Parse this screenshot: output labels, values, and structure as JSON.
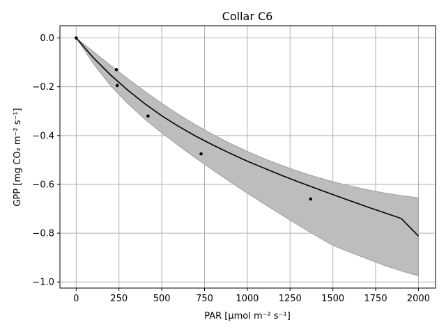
{
  "chart_data": {
    "type": "line",
    "title": "Collar C6",
    "xlabel": "PAR [μmol m⁻² s⁻¹]",
    "ylabel": "GPP [mg CO₂ m⁻² s⁻¹]",
    "xlim": [
      -95,
      2100
    ],
    "ylim": [
      -1.025,
      0.05
    ],
    "xticks": [
      0,
      250,
      500,
      750,
      1000,
      1250,
      1500,
      1750,
      2000
    ],
    "xtick_labels": [
      "0",
      "250",
      "500",
      "750",
      "1000",
      "1250",
      "1500",
      "1750",
      "2000"
    ],
    "yticks": [
      0.0,
      -0.2,
      -0.4,
      -0.6,
      -0.8,
      -1.0
    ],
    "ytick_labels": [
      "0.0",
      "−0.2",
      "−0.4",
      "−0.6",
      "−0.8",
      "−1.0"
    ],
    "grid": true,
    "colors": {
      "fit": "#000000",
      "band": "#bdbdbd",
      "points": "#000000"
    },
    "points": {
      "x": [
        0,
        235,
        240,
        420,
        730,
        1370
      ],
      "y": [
        0.0,
        -0.13,
        -0.195,
        -0.32,
        -0.475,
        -0.66
      ]
    },
    "fit": {
      "x": [
        0,
        100,
        200,
        300,
        400,
        500,
        600,
        700,
        800,
        900,
        1000,
        1100,
        1200,
        1300,
        1400,
        1500,
        1600,
        1700,
        1800,
        1900,
        2000
      ],
      "y": [
        0.0,
        -0.081,
        -0.151,
        -0.213,
        -0.269,
        -0.319,
        -0.363,
        -0.403,
        -0.439,
        -0.473,
        -0.505,
        -0.534,
        -0.563,
        -0.59,
        -0.616,
        -0.642,
        -0.667,
        -0.692,
        -0.716,
        -0.74,
        -0.812
      ]
    },
    "band": {
      "x": [
        0,
        100,
        200,
        300,
        400,
        500,
        600,
        700,
        800,
        900,
        1000,
        1100,
        1200,
        1300,
        1400,
        1500,
        1600,
        1700,
        1800,
        1900,
        2000
      ],
      "upper": [
        0.0,
        -0.056,
        -0.112,
        -0.166,
        -0.218,
        -0.268,
        -0.314,
        -0.357,
        -0.396,
        -0.432,
        -0.465,
        -0.495,
        -0.522,
        -0.547,
        -0.569,
        -0.589,
        -0.606,
        -0.622,
        -0.635,
        -0.646,
        -0.655
      ],
      "lower": [
        0.0,
        -0.105,
        -0.195,
        -0.268,
        -0.332,
        -0.389,
        -0.442,
        -0.493,
        -0.542,
        -0.59,
        -0.636,
        -0.681,
        -0.725,
        -0.768,
        -0.81,
        -0.85,
        -0.878,
        -0.905,
        -0.932,
        -0.955,
        -0.975
      ]
    }
  }
}
